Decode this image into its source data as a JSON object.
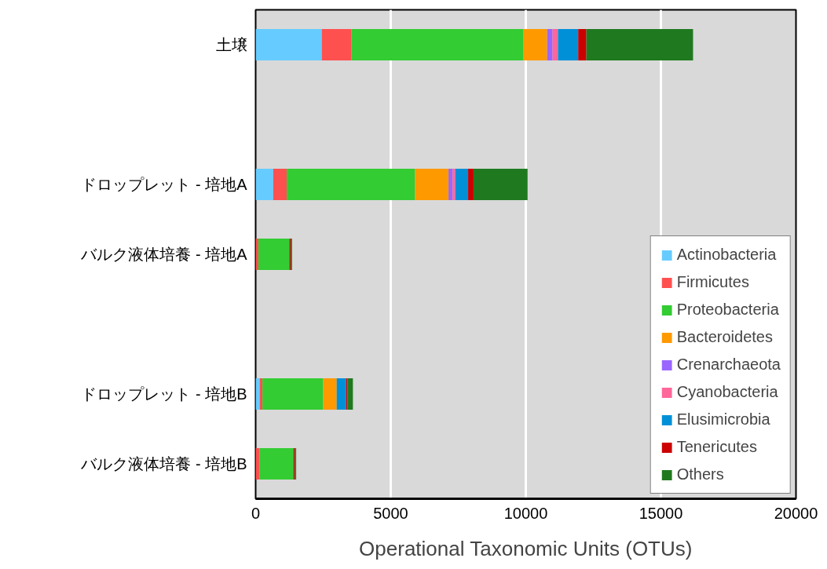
{
  "chart_data": {
    "type": "bar",
    "orientation": "horizontal",
    "stacked": true,
    "xlabel": "Operational Taxonomic Units (OTUs)",
    "categories": [
      "土壌",
      null,
      "ドロップレット - 培地A",
      "バルク液体培養 - 培地A",
      null,
      "ドロップレット - 培地B",
      "バルク液体培養 - 培地B"
    ],
    "series": [
      {
        "name": "Actinobacteria",
        "color": "#66ccff",
        "values": [
          2450,
          null,
          650,
          null,
          null,
          150,
          null
        ]
      },
      {
        "name": "Firmicutes",
        "color": "#ff5050",
        "values": [
          1100,
          null,
          500,
          100,
          null,
          100,
          150
        ]
      },
      {
        "name": "Proteobacteria",
        "color": "#33cc33",
        "values": [
          6350,
          null,
          4750,
          1150,
          null,
          2250,
          1250
        ]
      },
      {
        "name": "Bacteroidetes",
        "color": "#ff9900",
        "values": [
          890,
          null,
          1240,
          0,
          null,
          500,
          0
        ]
      },
      {
        "name": "Crenarchaeota",
        "color": "#9966ff",
        "values": [
          200,
          null,
          150,
          0,
          null,
          0,
          0
        ]
      },
      {
        "name": "Cyanobacteria",
        "color": "#ff6699",
        "values": [
          200,
          null,
          100,
          0,
          null,
          0,
          0
        ]
      },
      {
        "name": "Elusimicrobia",
        "color": "#0090d8",
        "values": [
          750,
          null,
          475,
          0,
          null,
          350,
          0
        ]
      },
      {
        "name": "Tenericutes",
        "color": "#cc0000",
        "values": [
          300,
          null,
          200,
          50,
          null,
          50,
          50
        ]
      },
      {
        "name": "Others",
        "color": "#1f7a1f",
        "values": [
          3950,
          null,
          2000,
          50,
          null,
          200,
          50
        ]
      }
    ],
    "xlim": [
      0,
      20000
    ],
    "xticks": [
      0,
      5000,
      10000,
      15000,
      20000
    ],
    "grid": "x",
    "legend": "bottom right"
  }
}
